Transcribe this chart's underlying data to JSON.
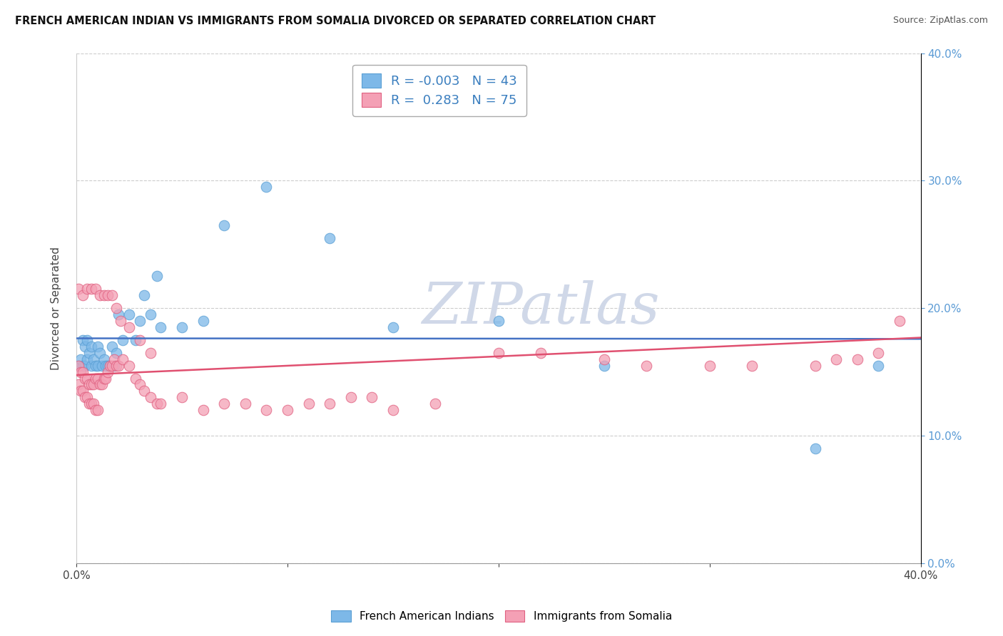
{
  "title": "FRENCH AMERICAN INDIAN VS IMMIGRANTS FROM SOMALIA DIVORCED OR SEPARATED CORRELATION CHART",
  "source": "Source: ZipAtlas.com",
  "ylabel": "Divorced or Separated",
  "xlim": [
    0.0,
    0.4
  ],
  "ylim": [
    0.0,
    0.4
  ],
  "legend_labels": [
    "French American Indians",
    "Immigrants from Somalia"
  ],
  "R_blue": -0.003,
  "N_blue": 43,
  "R_pink": 0.283,
  "N_pink": 75,
  "blue_scatter_color": "#7db8e8",
  "blue_edge_color": "#5a9fd4",
  "pink_scatter_color": "#f4a0b5",
  "pink_edge_color": "#e06080",
  "blue_line_color": "#4472c4",
  "pink_line_color": "#e05070",
  "right_tick_color": "#5b9bd5",
  "watermark_color": "#d0d8e8",
  "blue_points_x": [
    0.001,
    0.002,
    0.003,
    0.003,
    0.004,
    0.004,
    0.005,
    0.005,
    0.006,
    0.007,
    0.007,
    0.008,
    0.009,
    0.01,
    0.01,
    0.011,
    0.012,
    0.013,
    0.014,
    0.015,
    0.016,
    0.017,
    0.018,
    0.019,
    0.02,
    0.022,
    0.025,
    0.028,
    0.03,
    0.032,
    0.035,
    0.038,
    0.04,
    0.05,
    0.06,
    0.07,
    0.09,
    0.12,
    0.15,
    0.2,
    0.25,
    0.35,
    0.38
  ],
  "blue_points_y": [
    0.155,
    0.16,
    0.155,
    0.175,
    0.155,
    0.17,
    0.16,
    0.175,
    0.165,
    0.155,
    0.17,
    0.16,
    0.155,
    0.155,
    0.17,
    0.165,
    0.155,
    0.16,
    0.155,
    0.155,
    0.155,
    0.17,
    0.155,
    0.165,
    0.195,
    0.175,
    0.195,
    0.175,
    0.19,
    0.21,
    0.195,
    0.225,
    0.185,
    0.185,
    0.19,
    0.265,
    0.295,
    0.255,
    0.185,
    0.19,
    0.155,
    0.09,
    0.155
  ],
  "pink_points_x": [
    0.001,
    0.001,
    0.002,
    0.002,
    0.003,
    0.003,
    0.004,
    0.004,
    0.005,
    0.005,
    0.006,
    0.006,
    0.007,
    0.007,
    0.008,
    0.008,
    0.009,
    0.009,
    0.01,
    0.01,
    0.011,
    0.012,
    0.013,
    0.014,
    0.015,
    0.016,
    0.017,
    0.018,
    0.019,
    0.02,
    0.022,
    0.025,
    0.028,
    0.03,
    0.032,
    0.035,
    0.038,
    0.04,
    0.05,
    0.06,
    0.07,
    0.08,
    0.09,
    0.1,
    0.11,
    0.12,
    0.13,
    0.14,
    0.15,
    0.17,
    0.2,
    0.22,
    0.25,
    0.27,
    0.3,
    0.32,
    0.35,
    0.36,
    0.37,
    0.38,
    0.39,
    0.001,
    0.003,
    0.005,
    0.007,
    0.009,
    0.011,
    0.013,
    0.015,
    0.017,
    0.019,
    0.021,
    0.025,
    0.03,
    0.035
  ],
  "pink_points_y": [
    0.155,
    0.14,
    0.15,
    0.135,
    0.15,
    0.135,
    0.145,
    0.13,
    0.145,
    0.13,
    0.14,
    0.125,
    0.14,
    0.125,
    0.14,
    0.125,
    0.145,
    0.12,
    0.145,
    0.12,
    0.14,
    0.14,
    0.145,
    0.145,
    0.15,
    0.155,
    0.155,
    0.16,
    0.155,
    0.155,
    0.16,
    0.155,
    0.145,
    0.14,
    0.135,
    0.13,
    0.125,
    0.125,
    0.13,
    0.12,
    0.125,
    0.125,
    0.12,
    0.12,
    0.125,
    0.125,
    0.13,
    0.13,
    0.12,
    0.125,
    0.165,
    0.165,
    0.16,
    0.155,
    0.155,
    0.155,
    0.155,
    0.16,
    0.16,
    0.165,
    0.19,
    0.215,
    0.21,
    0.215,
    0.215,
    0.215,
    0.21,
    0.21,
    0.21,
    0.21,
    0.2,
    0.19,
    0.185,
    0.175,
    0.165
  ]
}
